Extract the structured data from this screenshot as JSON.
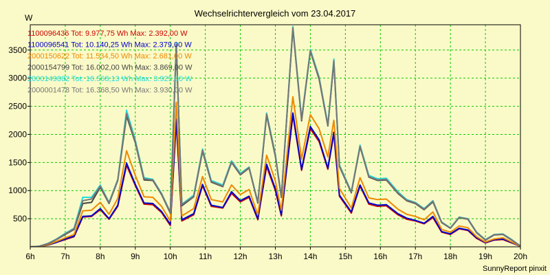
{
  "chart_data": {
    "type": "line",
    "title": "Wechselrichtervergleich vom 23.04.2017",
    "ylabel": "W",
    "xlabel": "",
    "credit": "SunnyReport pinxit",
    "ylim": [
      0,
      3950
    ],
    "xlim": [
      6,
      20
    ],
    "yticks": [
      500,
      1000,
      1500,
      2000,
      2500,
      3000,
      3500
    ],
    "xticks": [
      {
        "v": 6,
        "label": "6h"
      },
      {
        "v": 7,
        "label": "7h"
      },
      {
        "v": 8,
        "label": "8h"
      },
      {
        "v": 9,
        "label": "9h"
      },
      {
        "v": 10,
        "label": "10h"
      },
      {
        "v": 11,
        "label": "11h"
      },
      {
        "v": 12,
        "label": "12h"
      },
      {
        "v": 13,
        "label": "13h"
      },
      {
        "v": 14,
        "label": "14h"
      },
      {
        "v": 15,
        "label": "15h"
      },
      {
        "v": 16,
        "label": "16h"
      },
      {
        "v": 17,
        "label": "17h"
      },
      {
        "v": 18,
        "label": "18h"
      },
      {
        "v": 19,
        "label": "19h"
      },
      {
        "v": 20,
        "label": "20h"
      }
    ],
    "grid": true,
    "legend_position": "top-left",
    "colors": {
      "background": "#fafac8",
      "grid": "#00cc00",
      "axis": "#000000"
    },
    "x": [
      6.0,
      6.25,
      6.5,
      6.75,
      7.0,
      7.25,
      7.5,
      7.75,
      8.0,
      8.25,
      8.5,
      8.75,
      9.0,
      9.25,
      9.5,
      9.75,
      10.0,
      10.17,
      10.33,
      10.67,
      10.92,
      11.17,
      11.5,
      11.75,
      12.0,
      12.25,
      12.5,
      12.75,
      13.0,
      13.17,
      13.5,
      13.75,
      14.0,
      14.25,
      14.5,
      14.67,
      14.83,
      15.17,
      15.42,
      15.67,
      15.92,
      16.17,
      16.5,
      16.75,
      17.0,
      17.25,
      17.5,
      17.75,
      18.0,
      18.25,
      18.5,
      18.75,
      19.0,
      19.25,
      19.5,
      19.75,
      20.0
    ],
    "series": [
      {
        "name": "1100096436",
        "label": "1100096436 Tot: 9.977,75 Wh Max: 2.392,00 W",
        "color": "#cc0000",
        "values": [
          0,
          5,
          30,
          80,
          130,
          180,
          530,
          540,
          660,
          490,
          720,
          1450,
          1090,
          760,
          750,
          610,
          380,
          2230,
          460,
          570,
          1090,
          720,
          690,
          950,
          800,
          880,
          480,
          1430,
          1000,
          550,
          2340,
          1360,
          2100,
          1870,
          1380,
          2010,
          900,
          600,
          1080,
          760,
          720,
          730,
          570,
          490,
          460,
          410,
          520,
          260,
          220,
          320,
          290,
          150,
          70,
          120,
          130,
          70,
          10
        ]
      },
      {
        "name": "1100096541",
        "label": "1100096541 Tot: 10.140,25 Wh Max: 2.379,00 W",
        "color": "#0000cc",
        "values": [
          0,
          5,
          30,
          80,
          140,
          190,
          540,
          550,
          680,
          500,
          740,
          1490,
          1110,
          780,
          770,
          630,
          400,
          2270,
          480,
          590,
          1110,
          740,
          700,
          980,
          820,
          900,
          500,
          1470,
          1030,
          570,
          2380,
          1380,
          2140,
          1900,
          1400,
          2040,
          920,
          620,
          1100,
          780,
          740,
          750,
          590,
          510,
          470,
          420,
          540,
          270,
          230,
          330,
          300,
          160,
          75,
          125,
          140,
          75,
          10
        ]
      },
      {
        "name": "2000150622",
        "label": "2000150622 Tot: 11.534,50 Wh Max: 2.681,00 W",
        "color": "#ee8800",
        "values": [
          0,
          5,
          35,
          95,
          160,
          220,
          640,
          650,
          790,
          580,
          860,
          1710,
          1270,
          890,
          880,
          720,
          460,
          2570,
          550,
          680,
          1250,
          840,
          800,
          1100,
          930,
          1020,
          570,
          1630,
          1170,
          650,
          2670,
          1560,
          2350,
          2100,
          1600,
          2250,
          1040,
          690,
          1230,
          870,
          840,
          850,
          670,
          580,
          540,
          480,
          620,
          310,
          260,
          370,
          340,
          180,
          85,
          140,
          160,
          85,
          10
        ]
      },
      {
        "name": "2000154799",
        "label": "2000154799 Tot: 16.002,00 Wh Max: 3.869,00 W",
        "color": "#444444",
        "values": [
          0,
          10,
          50,
          130,
          220,
          310,
          770,
          790,
          1060,
          770,
          1180,
          2330,
          1850,
          1190,
          1180,
          930,
          600,
          3580,
          730,
          890,
          1700,
          1150,
          1070,
          1500,
          1280,
          1400,
          780,
          2340,
          1610,
          880,
          3880,
          2240,
          3480,
          2980,
          2150,
          3290,
          1430,
          960,
          1780,
          1240,
          1180,
          1190,
          950,
          820,
          770,
          660,
          800,
          430,
          330,
          520,
          490,
          250,
          120,
          210,
          220,
          120,
          15
        ]
      },
      {
        "name": "2000149882",
        "label": "2000149882 Tot: 16.568,13 Wh Max: 3.925,00 W",
        "color": "#22dddd",
        "values": [
          0,
          10,
          60,
          140,
          240,
          330,
          880,
          880,
          1100,
          790,
          1200,
          2430,
          1900,
          1230,
          1200,
          950,
          620,
          3620,
          760,
          920,
          1740,
          1180,
          1100,
          1530,
          1310,
          1420,
          800,
          2380,
          1650,
          900,
          3920,
          2280,
          3510,
          3020,
          2180,
          3340,
          1460,
          980,
          1810,
          1270,
          1210,
          1220,
          980,
          840,
          790,
          680,
          820,
          440,
          340,
          530,
          500,
          260,
          130,
          220,
          230,
          130,
          15
        ]
      },
      {
        "name": "2000001478",
        "label": "2000001478 Tot: 16.368,50 Wh Max: 3.930,00 W",
        "color": "#777777",
        "values": [
          0,
          10,
          55,
          135,
          230,
          320,
          820,
          850,
          1080,
          780,
          1190,
          2370,
          1870,
          1210,
          1190,
          940,
          610,
          3600,
          750,
          900,
          1720,
          1160,
          1080,
          1510,
          1290,
          1410,
          790,
          2360,
          1630,
          890,
          3900,
          2260,
          3490,
          3000,
          2160,
          3310,
          1440,
          970,
          1790,
          1250,
          1190,
          1200,
          960,
          830,
          780,
          670,
          810,
          435,
          335,
          525,
          495,
          255,
          125,
          215,
          225,
          125,
          15
        ]
      }
    ]
  }
}
